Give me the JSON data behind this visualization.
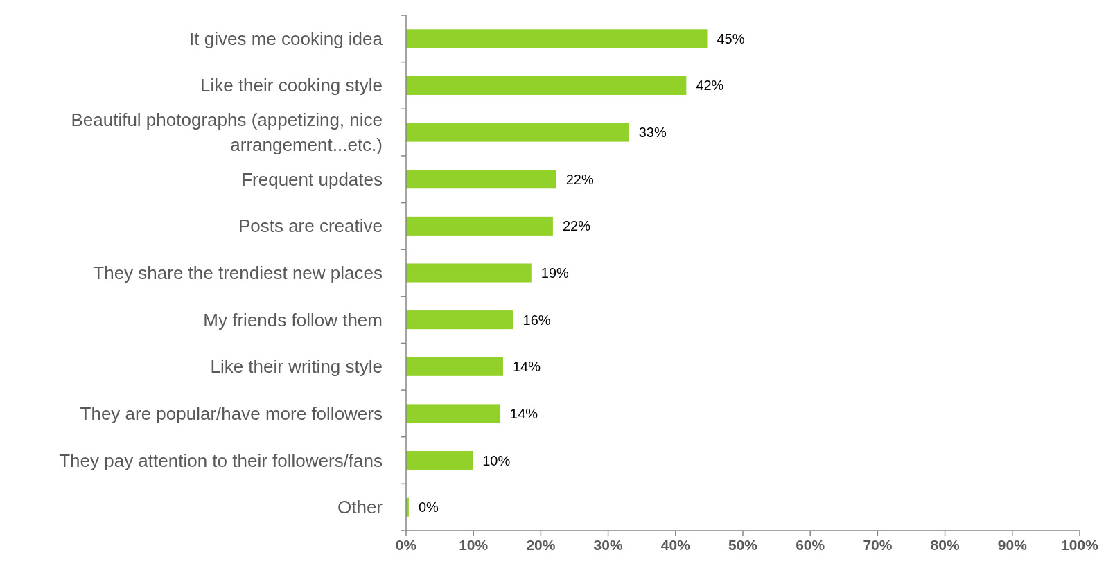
{
  "chart_data": {
    "type": "bar",
    "orientation": "horizontal",
    "categories": [
      "It gives me cooking idea",
      "Like their cooking style",
      "Beautiful photographs (appetizing, nice arrangement...etc.)",
      "Frequent updates",
      "Posts are creative",
      "They share the trendiest new places",
      "My friends follow them",
      "Like their writing style",
      "They are popular/have more followers",
      "They pay attention to their followers/fans",
      "Other"
    ],
    "values": [
      44.7,
      41.6,
      33.1,
      22.3,
      21.8,
      18.6,
      15.9,
      14.4,
      14.0,
      9.9,
      0.4
    ],
    "value_labels": [
      "45%",
      "42%",
      "33%",
      "22%",
      "22%",
      "19%",
      "16%",
      "14%",
      "14%",
      "10%",
      "0%"
    ],
    "color": "#92d12a",
    "xlim": [
      0,
      100
    ],
    "xticks": [
      {
        "value": 0,
        "label": "0%"
      },
      {
        "value": 10,
        "label": "10%"
      },
      {
        "value": 20,
        "label": "20%"
      },
      {
        "value": 30,
        "label": "30%"
      },
      {
        "value": 40,
        "label": "40%"
      },
      {
        "value": 50,
        "label": "50%"
      },
      {
        "value": 60,
        "label": "60%"
      },
      {
        "value": 70,
        "label": "70%"
      },
      {
        "value": 80,
        "label": "80%"
      },
      {
        "value": 90,
        "label": "90%"
      },
      {
        "value": 100,
        "label": "100%"
      }
    ],
    "grid": false
  }
}
